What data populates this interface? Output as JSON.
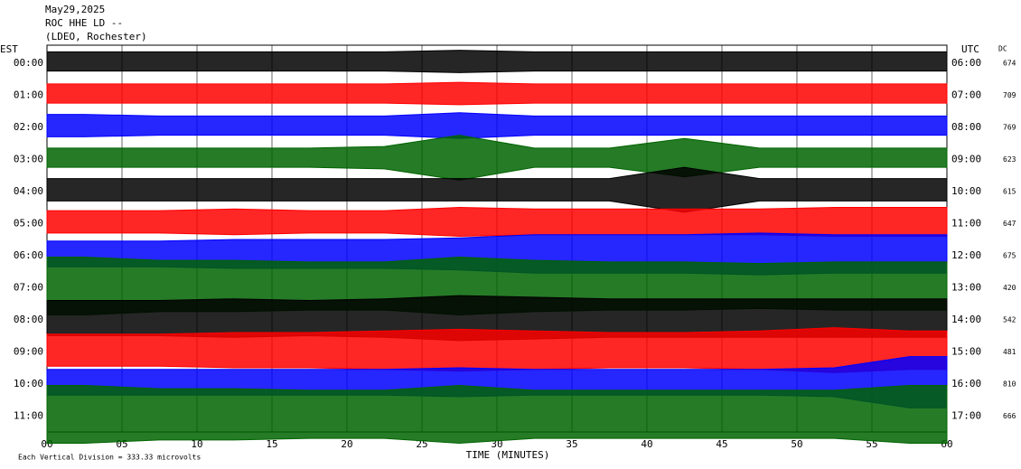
{
  "chart_data": {
    "type": "helicorder",
    "title": [
      "May29,2025",
      "ROC HHE LD --",
      "(LDEO, Rochester)"
    ],
    "left_axis_label": "EST",
    "right_axis_label": "UTC",
    "dc_label": "DC",
    "xlabel": "TIME (MINUTES)",
    "footer": "Each Vertical Division =  333.33 microvolts",
    "xlim": [
      0,
      60
    ],
    "xticks": [
      {
        "value": 0,
        "label": "00"
      },
      {
        "value": 5,
        "label": "05"
      },
      10,
      15,
      20,
      25,
      30,
      35,
      40,
      45,
      50,
      55,
      60
    ],
    "rows": [
      {
        "est": "00:00",
        "utc": "06:00",
        "dc": 674,
        "color": "#000000",
        "amplitude": [
          0.3,
          0.3,
          0.3,
          0.3,
          0.3,
          0.35,
          0.3,
          0.3,
          0.3,
          0.3,
          0.3,
          0.3
        ]
      },
      {
        "est": "01:00",
        "utc": "07:00",
        "dc": 709,
        "color": "#ff0000",
        "amplitude": [
          0.3,
          0.3,
          0.3,
          0.3,
          0.3,
          0.35,
          0.3,
          0.3,
          0.3,
          0.3,
          0.3,
          0.3
        ]
      },
      {
        "est": "02:00",
        "utc": "08:00",
        "dc": 769,
        "color": "#0000ff",
        "amplitude": [
          0.35,
          0.3,
          0.3,
          0.3,
          0.3,
          0.4,
          0.3,
          0.3,
          0.3,
          0.3,
          0.3,
          0.3
        ]
      },
      {
        "est": "03:00",
        "utc": "09:00",
        "dc": 623,
        "color": "#006400",
        "amplitude": [
          0.3,
          0.3,
          0.3,
          0.3,
          0.35,
          0.7,
          0.3,
          0.3,
          0.6,
          0.3,
          0.3,
          0.3
        ]
      },
      {
        "est": "04:00",
        "utc": "10:00",
        "dc": 615,
        "color": "#000000",
        "amplitude": [
          0.35,
          0.35,
          0.35,
          0.35,
          0.35,
          0.35,
          0.35,
          0.35,
          0.7,
          0.35,
          0.35,
          0.35
        ]
      },
      {
        "est": "05:00",
        "utc": "11:00",
        "dc": 647,
        "color": "#ff0000",
        "amplitude": [
          0.35,
          0.35,
          0.4,
          0.35,
          0.35,
          0.45,
          0.4,
          0.4,
          0.4,
          0.4,
          0.45,
          0.45
        ]
      },
      {
        "est": "06:00",
        "utc": "12:00",
        "dc": 675,
        "color": "#0000ff",
        "amplitude": [
          0.4,
          0.4,
          0.45,
          0.45,
          0.45,
          0.5,
          0.6,
          0.6,
          0.6,
          0.65,
          0.6,
          0.6
        ]
      },
      {
        "est": "07:00",
        "utc": "13:00",
        "dc": 420,
        "color": "#006400",
        "amplitude": [
          0.9,
          0.8,
          0.8,
          0.75,
          0.75,
          0.9,
          0.8,
          0.75,
          0.75,
          0.7,
          0.75,
          0.75
        ]
      },
      {
        "est": "08:00",
        "utc": "14:00",
        "dc": 542,
        "color": "#000000",
        "amplitude": [
          0.55,
          0.55,
          0.6,
          0.55,
          0.6,
          0.7,
          0.65,
          0.6,
          0.6,
          0.6,
          0.6,
          0.6
        ]
      },
      {
        "est": "09:00",
        "utc": "15:00",
        "dc": 481,
        "color": "#ff0000",
        "amplitude": [
          0.5,
          0.5,
          0.55,
          0.55,
          0.6,
          0.65,
          0.6,
          0.55,
          0.55,
          0.6,
          0.7,
          0.6
        ]
      },
      {
        "est": "10:00",
        "utc": "16:00",
        "dc": 810,
        "color": "#0000ff",
        "amplitude": [
          0.4,
          0.4,
          0.4,
          0.4,
          0.4,
          0.45,
          0.4,
          0.4,
          0.4,
          0.4,
          0.45,
          0.8
        ]
      },
      {
        "est": "11:00",
        "utc": "17:00",
        "dc": 666,
        "color": "#006400",
        "amplitude": [
          0.9,
          0.8,
          0.8,
          0.75,
          0.75,
          0.9,
          0.75,
          0.75,
          0.75,
          0.75,
          0.75,
          0.9
        ]
      }
    ]
  }
}
